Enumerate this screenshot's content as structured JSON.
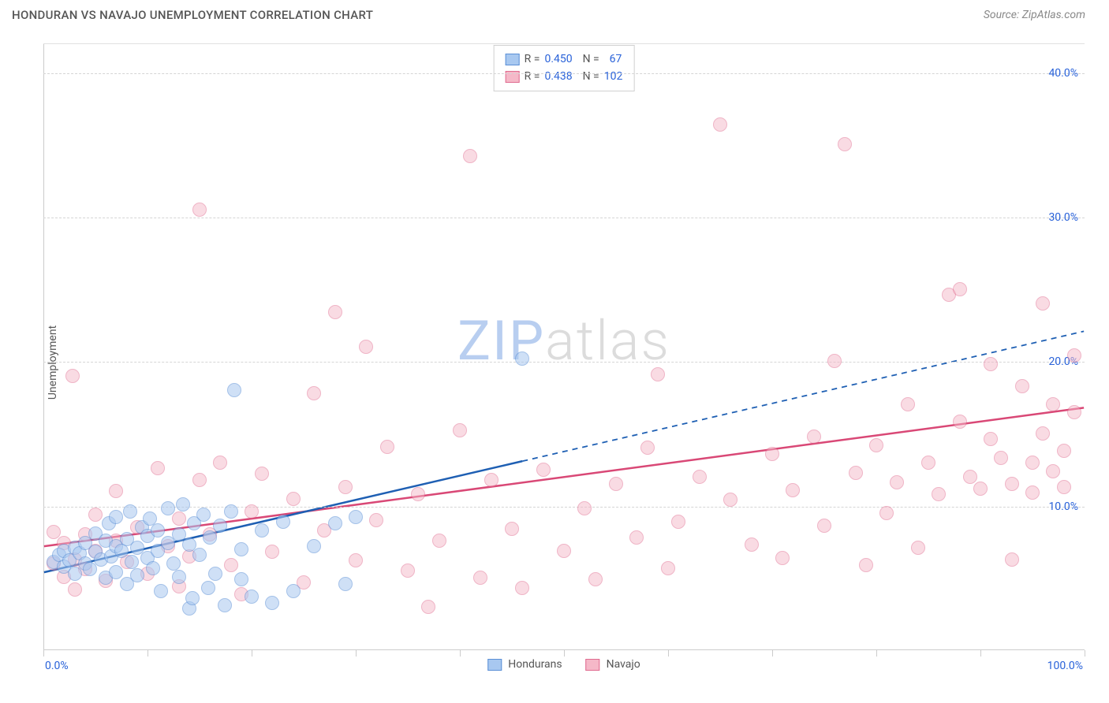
{
  "title": "HONDURAN VS NAVAJO UNEMPLOYMENT CORRELATION CHART",
  "source": "Source: ZipAtlas.com",
  "ylabel": "Unemployment",
  "watermark": {
    "part1": "ZIP",
    "part2": "atlas"
  },
  "chart": {
    "type": "scatter",
    "xlim": [
      0,
      100
    ],
    "ylim": [
      0,
      42
    ],
    "xticks": [
      0,
      10,
      20,
      30,
      40,
      50,
      60,
      70,
      80,
      90,
      100
    ],
    "xtick_labels": {
      "0": "0.0%",
      "100": "100.0%"
    },
    "yticks": [
      10,
      20,
      30,
      40
    ],
    "ytick_labels": [
      "10.0%",
      "20.0%",
      "30.0%",
      "40.0%"
    ],
    "grid_color": "#d5d5d5",
    "background_color": "#ffffff",
    "marker_radius": 9,
    "series": {
      "hondurans": {
        "label": "Hondurans",
        "fill": "#a8c8f0",
        "stroke": "#5b8fd6",
        "fill_opacity": 0.55,
        "line_color": "#1e5fb3",
        "line_width": 2.5,
        "R": "0.450",
        "N": "67",
        "trend": {
          "x1": 0,
          "y1": 5.4,
          "x2": 46,
          "y2": 13.1,
          "dash_x2": 100,
          "dash_y2": 22.1
        },
        "points": [
          [
            1,
            6.1
          ],
          [
            1.5,
            6.6
          ],
          [
            2,
            5.8
          ],
          [
            2,
            6.9
          ],
          [
            2.5,
            6.2
          ],
          [
            3,
            7.1
          ],
          [
            3,
            5.3
          ],
          [
            3.5,
            6.7
          ],
          [
            4,
            6.0
          ],
          [
            4,
            7.4
          ],
          [
            4.5,
            5.6
          ],
          [
            5,
            6.8
          ],
          [
            5,
            8.1
          ],
          [
            5.5,
            6.3
          ],
          [
            6,
            7.6
          ],
          [
            6,
            5.0
          ],
          [
            6.3,
            8.8
          ],
          [
            6.5,
            6.5
          ],
          [
            7,
            7.2
          ],
          [
            7,
            9.2
          ],
          [
            7,
            5.4
          ],
          [
            7.5,
            6.9
          ],
          [
            8,
            7.7
          ],
          [
            8,
            4.6
          ],
          [
            8.3,
            9.6
          ],
          [
            8.5,
            6.1
          ],
          [
            9,
            7.1
          ],
          [
            9.5,
            8.5
          ],
          [
            9,
            5.2
          ],
          [
            10,
            7.9
          ],
          [
            10,
            6.4
          ],
          [
            10.2,
            9.1
          ],
          [
            10.5,
            5.7
          ],
          [
            11,
            8.3
          ],
          [
            11,
            6.9
          ],
          [
            11.3,
            4.1
          ],
          [
            12,
            7.4
          ],
          [
            12,
            9.8
          ],
          [
            12.5,
            6.0
          ],
          [
            13,
            8.0
          ],
          [
            13,
            5.1
          ],
          [
            13.4,
            10.1
          ],
          [
            14,
            7.3
          ],
          [
            14,
            2.9
          ],
          [
            14.3,
            3.6
          ],
          [
            14.5,
            8.8
          ],
          [
            15,
            6.6
          ],
          [
            15.4,
            9.4
          ],
          [
            15.8,
            4.3
          ],
          [
            16,
            7.8
          ],
          [
            16.5,
            5.3
          ],
          [
            17,
            8.6
          ],
          [
            17.4,
            3.1
          ],
          [
            18,
            9.6
          ],
          [
            18.3,
            18.0
          ],
          [
            19,
            4.9
          ],
          [
            19,
            7.0
          ],
          [
            20,
            3.7
          ],
          [
            21,
            8.3
          ],
          [
            22,
            3.3
          ],
          [
            23,
            8.9
          ],
          [
            24,
            4.1
          ],
          [
            26,
            7.2
          ],
          [
            28,
            8.8
          ],
          [
            29,
            4.6
          ],
          [
            30,
            9.2
          ],
          [
            46,
            20.2
          ]
        ]
      },
      "navajo": {
        "label": "Navajo",
        "fill": "#f5b8c8",
        "stroke": "#e06b8f",
        "fill_opacity": 0.5,
        "line_color": "#d94876",
        "line_width": 2.5,
        "R": "0.438",
        "N": "102",
        "trend": {
          "x1": 0,
          "y1": 7.2,
          "x2": 100,
          "y2": 16.8
        },
        "points": [
          [
            1,
            6.0
          ],
          [
            1,
            8.2
          ],
          [
            2,
            5.1
          ],
          [
            2,
            7.4
          ],
          [
            2.8,
            19.0
          ],
          [
            3,
            6.3
          ],
          [
            3,
            4.2
          ],
          [
            4,
            8.0
          ],
          [
            4,
            5.6
          ],
          [
            5,
            6.9
          ],
          [
            5,
            9.4
          ],
          [
            6,
            4.8
          ],
          [
            7,
            7.6
          ],
          [
            7,
            11.0
          ],
          [
            8,
            6.1
          ],
          [
            9,
            8.5
          ],
          [
            10,
            5.3
          ],
          [
            11,
            12.6
          ],
          [
            12,
            7.2
          ],
          [
            13,
            4.4
          ],
          [
            13,
            9.1
          ],
          [
            14,
            6.5
          ],
          [
            15,
            11.8
          ],
          [
            15,
            30.5
          ],
          [
            16,
            8.0
          ],
          [
            17,
            13.0
          ],
          [
            18,
            5.9
          ],
          [
            19,
            3.9
          ],
          [
            20,
            9.6
          ],
          [
            21,
            12.2
          ],
          [
            22,
            6.8
          ],
          [
            24,
            10.5
          ],
          [
            25,
            4.7
          ],
          [
            26,
            17.8
          ],
          [
            27,
            8.3
          ],
          [
            28,
            23.4
          ],
          [
            29,
            11.3
          ],
          [
            30,
            6.2
          ],
          [
            31,
            21.0
          ],
          [
            32,
            9.0
          ],
          [
            33,
            14.1
          ],
          [
            35,
            5.5
          ],
          [
            36,
            10.8
          ],
          [
            37,
            3.0
          ],
          [
            38,
            7.6
          ],
          [
            40,
            15.2
          ],
          [
            41,
            34.2
          ],
          [
            42,
            5.0
          ],
          [
            43,
            11.8
          ],
          [
            45,
            8.4
          ],
          [
            46,
            4.3
          ],
          [
            48,
            12.5
          ],
          [
            50,
            6.9
          ],
          [
            52,
            9.8
          ],
          [
            53,
            4.9
          ],
          [
            55,
            11.5
          ],
          [
            57,
            7.8
          ],
          [
            58,
            14.0
          ],
          [
            59,
            19.1
          ],
          [
            60,
            5.7
          ],
          [
            61,
            8.9
          ],
          [
            63,
            12.0
          ],
          [
            65,
            36.4
          ],
          [
            66,
            10.4
          ],
          [
            68,
            7.3
          ],
          [
            70,
            13.6
          ],
          [
            71,
            6.4
          ],
          [
            72,
            11.1
          ],
          [
            74,
            14.8
          ],
          [
            75,
            8.6
          ],
          [
            76,
            20.0
          ],
          [
            77,
            35.0
          ],
          [
            78,
            12.3
          ],
          [
            79,
            5.9
          ],
          [
            80,
            14.2
          ],
          [
            81,
            9.5
          ],
          [
            82,
            11.6
          ],
          [
            83,
            17.0
          ],
          [
            84,
            7.1
          ],
          [
            85,
            13.0
          ],
          [
            86,
            10.8
          ],
          [
            87,
            24.6
          ],
          [
            88,
            15.8
          ],
          [
            88,
            25.0
          ],
          [
            89,
            12.0
          ],
          [
            90,
            11.2
          ],
          [
            91,
            14.6
          ],
          [
            91,
            19.8
          ],
          [
            92,
            13.3
          ],
          [
            93,
            6.3
          ],
          [
            93,
            11.5
          ],
          [
            94,
            18.3
          ],
          [
            95,
            13.0
          ],
          [
            95,
            10.9
          ],
          [
            96,
            15.0
          ],
          [
            96,
            24.0
          ],
          [
            97,
            12.4
          ],
          [
            97,
            17.0
          ],
          [
            98,
            13.8
          ],
          [
            98,
            11.3
          ],
          [
            99,
            20.4
          ],
          [
            99,
            16.5
          ]
        ]
      }
    }
  }
}
